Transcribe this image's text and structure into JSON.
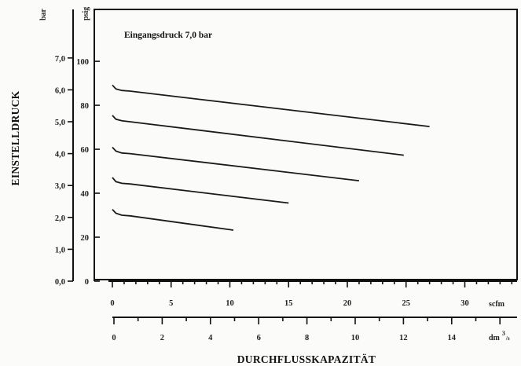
{
  "chart_data": {
    "type": "line",
    "annotation": "Eingangsdruck 7,0 bar",
    "ylabel": "EINSTELLDRUCK",
    "xlabel": "DURCHFLUSSKAPAZITÄT",
    "y_bar": {
      "unit": "bar",
      "ticks": [
        "0,0",
        "1,0",
        "2,0",
        "3,0",
        "4,0",
        "5,0",
        "6,0",
        "7,0"
      ],
      "tick_values": [
        0,
        1,
        2,
        3,
        4,
        5,
        6,
        7
      ],
      "range": [
        0,
        7.8
      ]
    },
    "y_psig": {
      "unit": "psig",
      "ticks": [
        "0",
        "20",
        "40",
        "60",
        "80",
        "100"
      ],
      "tick_values": [
        0,
        20,
        40,
        60,
        80,
        100
      ]
    },
    "x_scfm": {
      "unit": "scfm",
      "ticks": [
        "0",
        "5",
        "10",
        "15",
        "20",
        "25",
        "30"
      ],
      "tick_values": [
        0,
        5,
        10,
        15,
        20,
        25,
        30
      ],
      "range": [
        0,
        35
      ]
    },
    "x_dm3s": {
      "unit_main": "dm",
      "unit_sup": "3",
      "unit_tail": "/s",
      "ticks": [
        "0",
        "2",
        "4",
        "6",
        "8",
        "10",
        "12",
        "14"
      ],
      "tick_values": [
        0,
        2,
        4,
        6,
        8,
        10,
        12,
        14
      ],
      "range": [
        0,
        16.5
      ]
    },
    "series": [
      {
        "points": [
          [
            0,
            6.15
          ],
          [
            0.3,
            6.03
          ],
          [
            0.8,
            5.98
          ],
          [
            1.5,
            5.96
          ],
          [
            27,
            4.85
          ]
        ]
      },
      {
        "points": [
          [
            0,
            5.2
          ],
          [
            0.3,
            5.08
          ],
          [
            0.8,
            5.03
          ],
          [
            1.5,
            5.0
          ],
          [
            24.8,
            3.95
          ]
        ]
      },
      {
        "points": [
          [
            0,
            4.2
          ],
          [
            0.3,
            4.08
          ],
          [
            0.8,
            4.02
          ],
          [
            1.5,
            4.0
          ],
          [
            21,
            3.15
          ]
        ]
      },
      {
        "points": [
          [
            0,
            3.25
          ],
          [
            0.3,
            3.12
          ],
          [
            0.8,
            3.07
          ],
          [
            1.5,
            3.05
          ],
          [
            15,
            2.45
          ]
        ]
      },
      {
        "points": [
          [
            0,
            2.25
          ],
          [
            0.3,
            2.13
          ],
          [
            0.8,
            2.07
          ],
          [
            1.5,
            2.05
          ],
          [
            10.3,
            1.6
          ]
        ]
      }
    ]
  }
}
